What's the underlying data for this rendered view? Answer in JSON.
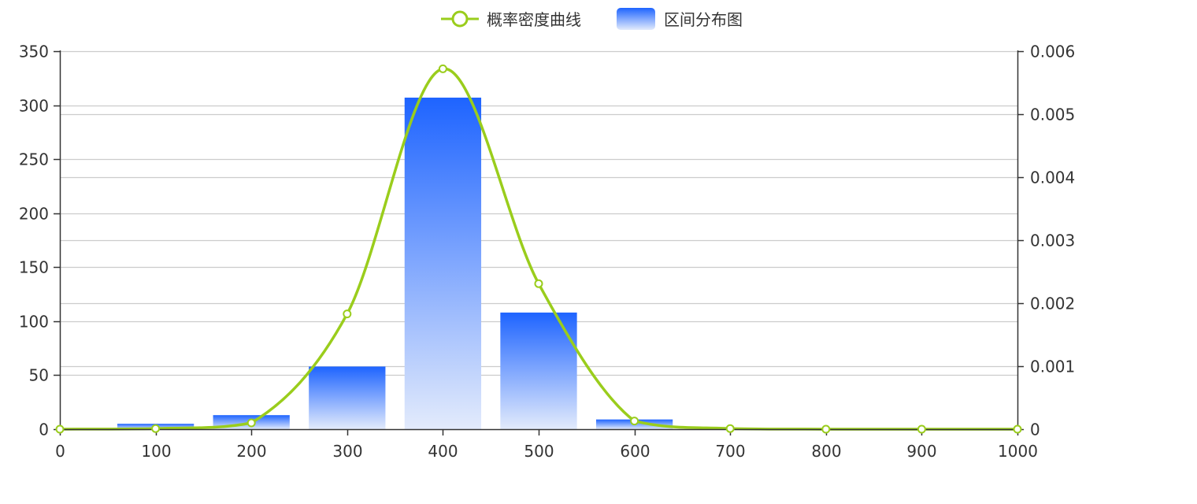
{
  "chart_data": {
    "type": "bar",
    "legend": {
      "position": "top-center",
      "items": [
        {
          "label": "概率密度曲线",
          "kind": "line-marker"
        },
        {
          "label": "区间分布图",
          "kind": "bar"
        }
      ]
    },
    "x_axis": {
      "range": [
        0,
        1000
      ],
      "ticks": [
        "0",
        "100",
        "200",
        "300",
        "400",
        "500",
        "600",
        "700",
        "800",
        "900",
        "1000"
      ]
    },
    "y_axis_left": {
      "range": [
        0,
        350
      ],
      "ticks": [
        "0",
        "50",
        "100",
        "150",
        "200",
        "250",
        "300",
        "350"
      ]
    },
    "y_axis_right": {
      "range": [
        0,
        0.006
      ],
      "ticks": [
        "0",
        "0.001",
        "0.002",
        "0.003",
        "0.004",
        "0.005",
        "0.006"
      ]
    },
    "grid": true,
    "series": [
      {
        "name": "区间分布图",
        "type": "bar",
        "axis": "left",
        "bins": [
          {
            "x0": 60,
            "x1": 140,
            "value": 5
          },
          {
            "x0": 160,
            "x1": 240,
            "value": 13
          },
          {
            "x0": 260,
            "x1": 340,
            "value": 58
          },
          {
            "x0": 360,
            "x1": 440,
            "value": 307
          },
          {
            "x0": 460,
            "x1": 540,
            "value": 108
          },
          {
            "x0": 560,
            "x1": 640,
            "value": 9
          }
        ]
      },
      {
        "name": "概率密度曲线",
        "type": "line",
        "axis": "right",
        "smooth": true,
        "points": [
          {
            "x": 0,
            "y": 0
          },
          {
            "x": 100,
            "y": 1e-05
          },
          {
            "x": 200,
            "y": 0.0001
          },
          {
            "x": 300,
            "y": 0.00183
          },
          {
            "x": 400,
            "y": 0.00572
          },
          {
            "x": 500,
            "y": 0.00231
          },
          {
            "x": 600,
            "y": 0.00013
          },
          {
            "x": 700,
            "y": 1e-05
          },
          {
            "x": 800,
            "y": 0
          },
          {
            "x": 900,
            "y": 0
          },
          {
            "x": 1000,
            "y": 0
          }
        ]
      }
    ],
    "colors": {
      "line": "#9acd1c",
      "bar_top": "#1e64ff",
      "bar_bottom": "#e3ebfc",
      "grid": "#cccccc",
      "axis": "#333333",
      "text": "#333333"
    }
  }
}
